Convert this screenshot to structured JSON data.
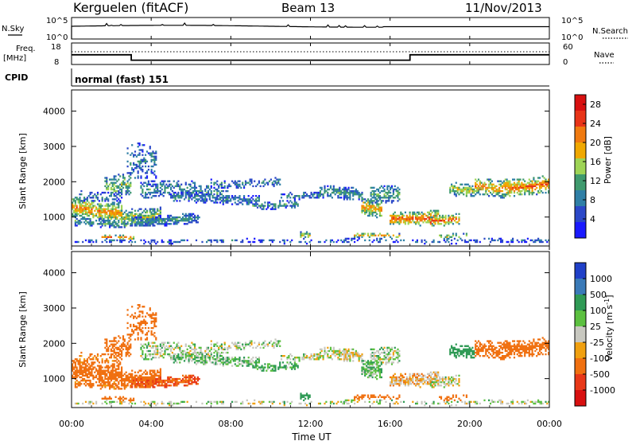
{
  "header": {
    "station": "Kerguelen (fitACF)",
    "beam": "Beam 13",
    "date": "11/Nov/2013"
  },
  "control_panels": {
    "nsky_label": "N.Sky",
    "nsky_ticks": [
      "10^5",
      "10^0"
    ],
    "nsearch_label": "N.Search",
    "nsearch_ticks": [
      "10^5",
      "10^0"
    ],
    "freq_label": [
      "Freq.",
      "[MHz]"
    ],
    "freq_ticks": [
      "18",
      "8"
    ],
    "nave_label": "Nave",
    "nave_ticks": [
      "60",
      "0"
    ],
    "cpid_label": "CPID",
    "cpid_value": "normal (fast) 151",
    "freq_steps": [
      {
        "from_hours": 0,
        "to_hours": 3,
        "mhz": 12.5
      },
      {
        "from_hours": 3,
        "to_hours": 17,
        "mhz": 10.0
      },
      {
        "from_hours": 17,
        "to_hours": 24,
        "mhz": 12.5
      }
    ]
  },
  "time_axis": {
    "label": "Time UT",
    "ticks": [
      "00:00",
      "04:00",
      "08:00",
      "12:00",
      "16:00",
      "20:00",
      "00:00"
    ],
    "range_hours": [
      0,
      24
    ]
  },
  "range_axis": {
    "label": "Slant Range [km]",
    "ticks": [
      "1000",
      "2000",
      "3000",
      "4000"
    ],
    "range_km": [
      180,
      4600
    ]
  },
  "chart_data": [
    {
      "type": "heatmap",
      "parameter": "Power",
      "colorbar_label": "Power [dB]",
      "colorbar_ticks": [
        "4",
        "8",
        "12",
        "16",
        "20",
        "24",
        "28"
      ],
      "value_range": [
        0,
        30
      ],
      "colors": [
        "#1a1aff",
        "#2b48c8",
        "#2f7fa6",
        "#3f9a6e",
        "#9ed455",
        "#f0a800",
        "#f07a10",
        "#e83418",
        "#d81010"
      ],
      "x_range_hours": [
        0,
        24
      ],
      "y_range_km": [
        180,
        4600
      ]
    },
    {
      "type": "heatmap",
      "parameter": "Velocity",
      "colorbar_label": "Velocity [m s^-1]",
      "colorbar_ticks": [
        "1000",
        "500",
        "100",
        "25",
        "-25",
        "-100",
        "-500",
        "-1000"
      ],
      "value_range": [
        -1200,
        1200
      ],
      "colors": [
        "#2040c8",
        "#3a7ab8",
        "#2f9a55",
        "#5cc040",
        "#c8c8c0",
        "#f0a010",
        "#f07010",
        "#e83818",
        "#d81010"
      ],
      "x_range_hours": [
        0,
        24
      ],
      "y_range_km": [
        180,
        4600
      ]
    }
  ]
}
